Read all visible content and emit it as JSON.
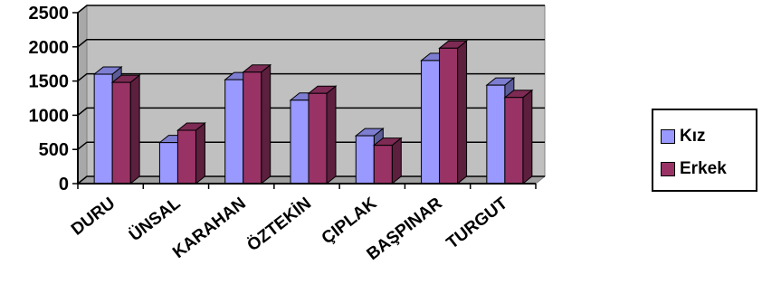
{
  "chart_data": {
    "type": "bar",
    "categories": [
      "DURU",
      "ÜNSAL",
      "KARAHAN",
      "ÖZTEKİN",
      "ÇIPLAK",
      "BAŞPINAR",
      "TURGUT"
    ],
    "series": [
      {
        "name": "Kız",
        "values": [
          1600,
          600,
          1520,
          1220,
          700,
          1800,
          1440
        ],
        "color": "#9999ff"
      },
      {
        "name": "Erkek",
        "values": [
          1480,
          780,
          1630,
          1320,
          560,
          1980,
          1260
        ],
        "color": "#993366"
      }
    ],
    "yticks": [
      "0",
      "500",
      "1000",
      "1500",
      "2000",
      "2500"
    ],
    "ylim": [
      0,
      2500
    ],
    "title": "",
    "xlabel": "",
    "ylabel": "",
    "grid": true,
    "legend_position": "right",
    "plot_background": "#c0c0c0"
  }
}
